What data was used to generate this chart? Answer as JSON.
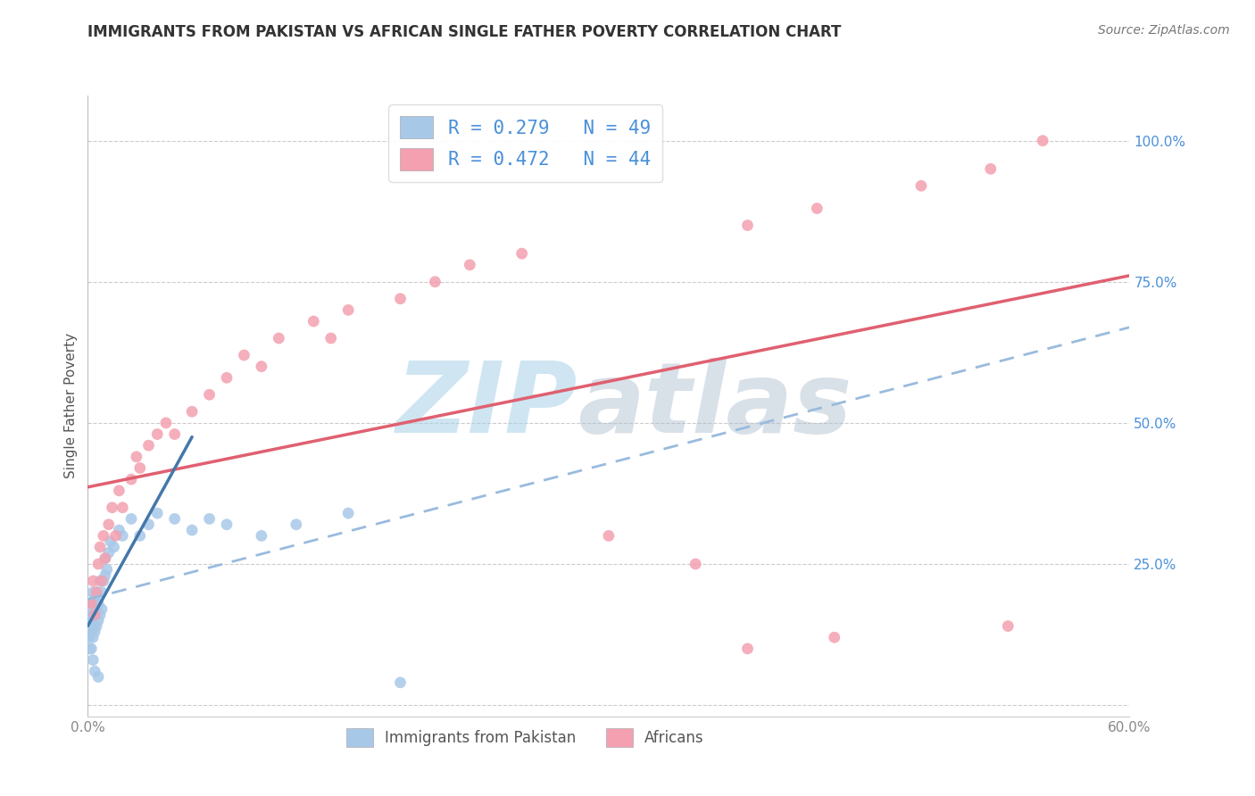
{
  "title": "IMMIGRANTS FROM PAKISTAN VS AFRICAN SINGLE FATHER POVERTY CORRELATION CHART",
  "source": "Source: ZipAtlas.com",
  "ylabel": "Single Father Poverty",
  "xlim": [
    0.0,
    0.6
  ],
  "ylim": [
    -0.02,
    1.08
  ],
  "legend_label1": "R = 0.279   N = 49",
  "legend_label2": "R = 0.472   N = 44",
  "legend_label_series1": "Immigrants from Pakistan",
  "legend_label_series2": "Africans",
  "color1": "#a8c8e8",
  "color2": "#f4a0b0",
  "trend1_color": "#4477aa",
  "trend2_color": "#e06070",
  "trend1_dash_color": "#99bbdd",
  "background_color": "#ffffff",
  "watermark_zip_color": "#a8d0e8",
  "watermark_atlas_color": "#aabbcc",
  "pakistan_x": [
    0.001,
    0.001,
    0.001,
    0.001,
    0.001,
    0.002,
    0.002,
    0.002,
    0.002,
    0.003,
    0.003,
    0.003,
    0.003,
    0.004,
    0.004,
    0.004,
    0.005,
    0.005,
    0.005,
    0.006,
    0.006,
    0.007,
    0.007,
    0.008,
    0.008,
    0.009,
    0.01,
    0.01,
    0.011,
    0.012,
    0.013,
    0.015,
    0.018,
    0.02,
    0.025,
    0.03,
    0.035,
    0.04,
    0.05,
    0.06,
    0.07,
    0.08,
    0.1,
    0.12,
    0.15,
    0.003,
    0.004,
    0.006,
    0.18
  ],
  "pakistan_y": [
    0.12,
    0.14,
    0.16,
    0.1,
    0.18,
    0.1,
    0.13,
    0.15,
    0.18,
    0.12,
    0.14,
    0.16,
    0.2,
    0.13,
    0.16,
    0.19,
    0.14,
    0.17,
    0.2,
    0.15,
    0.18,
    0.16,
    0.22,
    0.17,
    0.2,
    0.22,
    0.23,
    0.26,
    0.24,
    0.27,
    0.29,
    0.28,
    0.31,
    0.3,
    0.33,
    0.3,
    0.32,
    0.34,
    0.33,
    0.31,
    0.33,
    0.32,
    0.3,
    0.32,
    0.34,
    0.08,
    0.06,
    0.05,
    0.04
  ],
  "african_x": [
    0.002,
    0.003,
    0.004,
    0.005,
    0.006,
    0.007,
    0.008,
    0.009,
    0.01,
    0.012,
    0.014,
    0.016,
    0.018,
    0.02,
    0.025,
    0.028,
    0.03,
    0.035,
    0.04,
    0.045,
    0.05,
    0.06,
    0.07,
    0.08,
    0.09,
    0.1,
    0.11,
    0.13,
    0.14,
    0.15,
    0.18,
    0.2,
    0.22,
    0.25,
    0.3,
    0.35,
    0.38,
    0.42,
    0.48,
    0.52,
    0.38,
    0.43,
    0.53,
    0.55
  ],
  "african_y": [
    0.18,
    0.22,
    0.16,
    0.2,
    0.25,
    0.28,
    0.22,
    0.3,
    0.26,
    0.32,
    0.35,
    0.3,
    0.38,
    0.35,
    0.4,
    0.44,
    0.42,
    0.46,
    0.48,
    0.5,
    0.48,
    0.52,
    0.55,
    0.58,
    0.62,
    0.6,
    0.65,
    0.68,
    0.65,
    0.7,
    0.72,
    0.75,
    0.78,
    0.8,
    0.3,
    0.25,
    0.85,
    0.88,
    0.92,
    0.95,
    0.1,
    0.12,
    0.14,
    1.0
  ]
}
